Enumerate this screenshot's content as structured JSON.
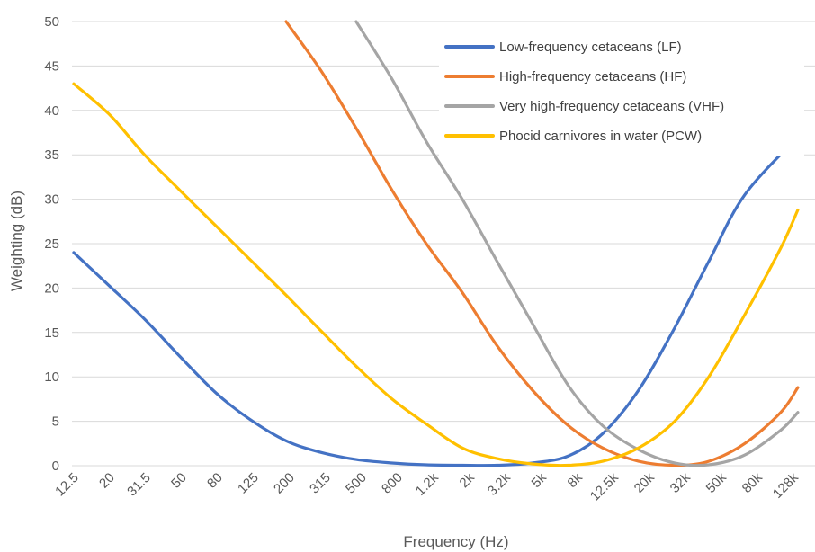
{
  "chart_data": {
    "type": "line",
    "title": "",
    "xlabel": "Frequency (Hz)",
    "ylabel": "Weighting (dB)",
    "x_scale": "log",
    "xlim": [
      12.5,
      160000
    ],
    "ylim": [
      0,
      50
    ],
    "y_ticks": [
      0,
      5,
      10,
      15,
      20,
      25,
      30,
      35,
      40,
      45,
      50
    ],
    "x_tick_labels": [
      "12.5",
      "20",
      "31.5",
      "50",
      "80",
      "125",
      "200",
      "315",
      "500",
      "800",
      "1.2k",
      "2k",
      "3.2k",
      "5k",
      "8k",
      "12.5k",
      "20k",
      "32k",
      "50k",
      "80k",
      "128k"
    ],
    "grid": "horizontal",
    "legend_position": "top-right",
    "series": [
      {
        "name": "Low-frequency cetaceans (LF)",
        "color": "#4472C4",
        "points": [
          [
            12.5,
            24
          ],
          [
            20,
            20.2
          ],
          [
            31.5,
            16.5
          ],
          [
            50,
            12.3
          ],
          [
            80,
            8.2
          ],
          [
            125,
            5.2
          ],
          [
            200,
            2.8
          ],
          [
            315,
            1.5
          ],
          [
            500,
            0.7
          ],
          [
            800,
            0.3
          ],
          [
            1250,
            0.1
          ],
          [
            2000,
            0.05
          ],
          [
            3150,
            0.05
          ],
          [
            5000,
            0.3
          ],
          [
            8000,
            1.1
          ],
          [
            12500,
            3.6
          ],
          [
            20000,
            8.5
          ],
          [
            32000,
            15.5
          ],
          [
            50000,
            23.0
          ],
          [
            80000,
            30.5
          ],
          [
            160000,
            37.0
          ]
        ]
      },
      {
        "name": "High-frequency cetaceans (HF)",
        "color": "#ED7D31",
        "points": [
          [
            200,
            50
          ],
          [
            315,
            44.5
          ],
          [
            500,
            38.0
          ],
          [
            800,
            31.0
          ],
          [
            1250,
            25.0
          ],
          [
            2000,
            19.5
          ],
          [
            3150,
            13.5
          ],
          [
            5000,
            8.5
          ],
          [
            8000,
            4.5
          ],
          [
            12500,
            2.0
          ],
          [
            20000,
            0.5
          ],
          [
            32000,
            0.05
          ],
          [
            50000,
            0.5
          ],
          [
            80000,
            2.5
          ],
          [
            128000,
            6.0
          ],
          [
            160000,
            8.8
          ]
        ]
      },
      {
        "name": "Very high-frequency cetaceans (VHF)",
        "color": "#A5A5A5",
        "points": [
          [
            500,
            50
          ],
          [
            800,
            43.5
          ],
          [
            1250,
            36.5
          ],
          [
            2000,
            30.0
          ],
          [
            3150,
            23.0
          ],
          [
            5000,
            16.0
          ],
          [
            8000,
            9.0
          ],
          [
            12500,
            4.5
          ],
          [
            20000,
            1.8
          ],
          [
            32000,
            0.3
          ],
          [
            50000,
            0.1
          ],
          [
            80000,
            1.2
          ],
          [
            128000,
            4.0
          ],
          [
            160000,
            6.0
          ]
        ]
      },
      {
        "name": "Phocid carnivores in water (PCW)",
        "color": "#FFC000",
        "points": [
          [
            12.5,
            43
          ],
          [
            20,
            39.5
          ],
          [
            31.5,
            35.0
          ],
          [
            50,
            31.0
          ],
          [
            80,
            27.0
          ],
          [
            125,
            23.2
          ],
          [
            200,
            19.2
          ],
          [
            315,
            15.2
          ],
          [
            500,
            11.2
          ],
          [
            800,
            7.5
          ],
          [
            1250,
            4.7
          ],
          [
            2000,
            2.0
          ],
          [
            3150,
            0.8
          ],
          [
            5000,
            0.2
          ],
          [
            8000,
            0.05
          ],
          [
            12500,
            0.5
          ],
          [
            20000,
            2.0
          ],
          [
            32000,
            5.0
          ],
          [
            50000,
            10.0
          ],
          [
            80000,
            17.0
          ],
          [
            128000,
            24.5
          ],
          [
            160000,
            28.8
          ]
        ]
      }
    ]
  }
}
